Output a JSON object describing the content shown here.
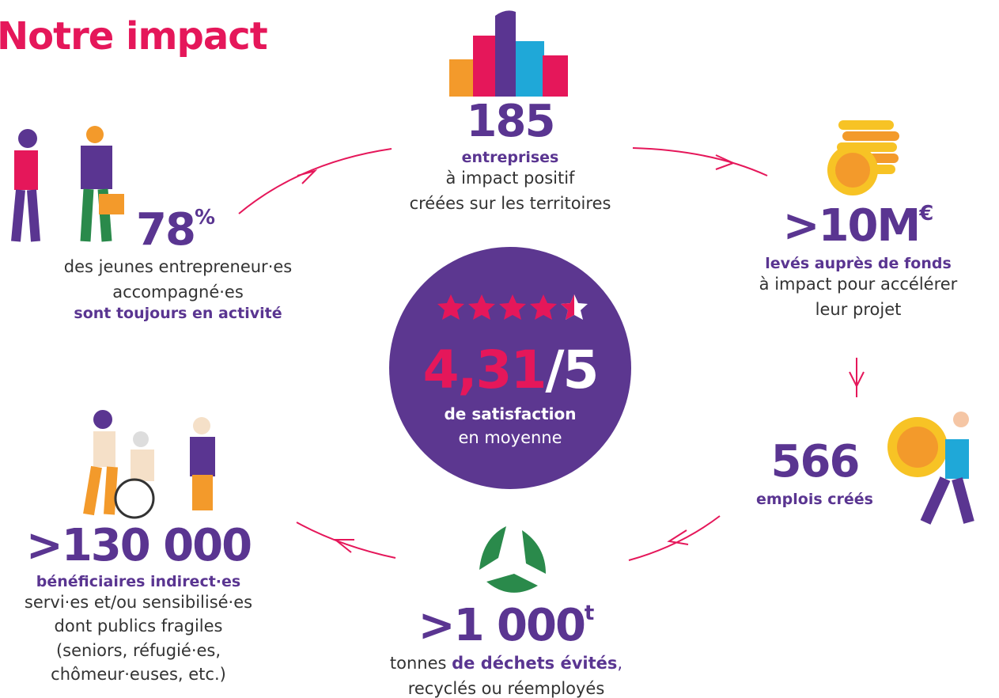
{
  "title": "Notre impact",
  "center": {
    "value": "4,31",
    "scale": "/5",
    "bold": "de satisfaction",
    "text": "en moyenne"
  },
  "items": [
    {
      "figure": "185",
      "bold": "entreprises",
      "lines": [
        "à impact positif",
        "créées sur les territoires"
      ]
    },
    {
      "figure": ">10M",
      "sup": "€",
      "bold": "levés auprès de fonds",
      "lines": [
        "à impact pour accélérer",
        "leur projet"
      ]
    },
    {
      "figure": "566",
      "bold": "emplois créés"
    },
    {
      "figure": ">1 000",
      "sup": "t",
      "prefix": "tonnes",
      "bold": "de déchets évités",
      "suffix": ",",
      "lines": [
        "recyclés ou réemployés"
      ]
    },
    {
      "figure": ">130 000",
      "bold": "bénéficiaires indirect·es",
      "lines": [
        "servi·es et/ou sensibilisé·es",
        "dont publics fragiles",
        "(seniors, réfugié·es,",
        "chômeur·euses, etc.)"
      ]
    },
    {
      "figure": "78",
      "sup": "%",
      "lines": [
        "des jeunes entrepreneur·es",
        "accompagné·es"
      ],
      "bold": "sont toujours en activité"
    }
  ]
}
